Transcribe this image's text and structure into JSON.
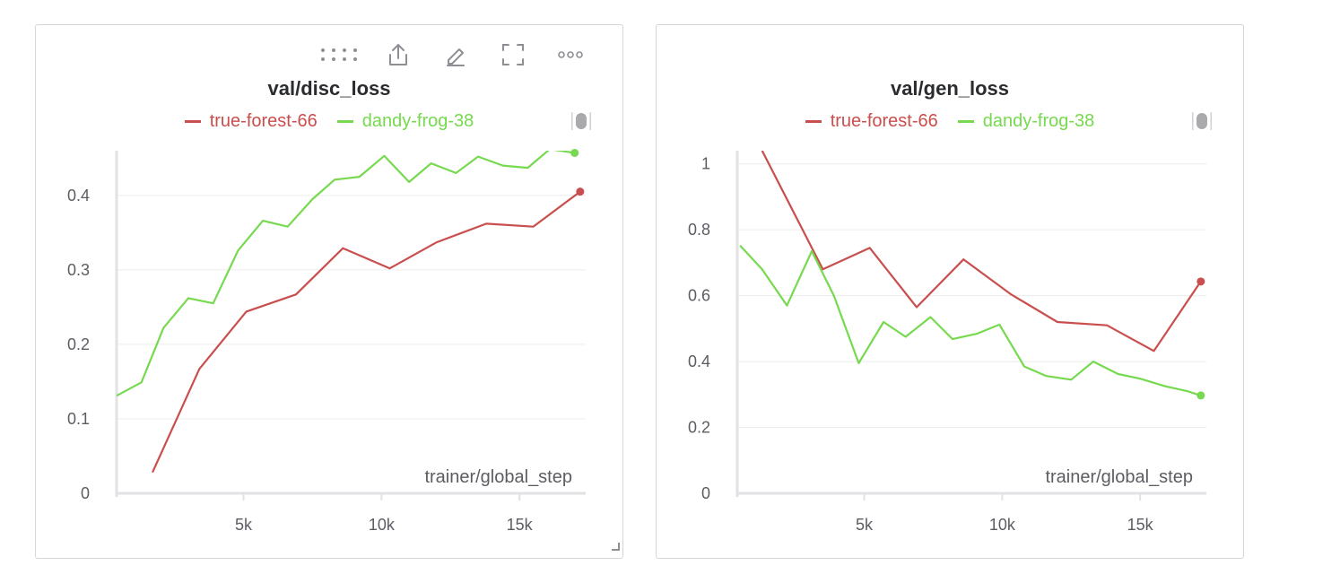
{
  "panels": [
    {
      "toolbar": {
        "icons": [
          "drag-handle-icon",
          "share-icon",
          "edit-icon",
          "fullscreen-icon",
          "more-options-icon"
        ]
      },
      "chart_data": {
        "type": "line",
        "title": "val/disc_loss",
        "xlabel": "trainer/global_step",
        "ylabel": "",
        "xlim": [
          400,
          17400
        ],
        "ylim": [
          0,
          0.46
        ],
        "xticks": [
          5000,
          10000,
          15000
        ],
        "xtick_labels": [
          "5k",
          "10k",
          "15k"
        ],
        "yticks": [
          0,
          0.1,
          0.2,
          0.3,
          0.4
        ],
        "ytick_labels": [
          "0",
          "0.1",
          "0.2",
          "0.3",
          "0.4"
        ],
        "grid": true,
        "legend_position": "top-center",
        "series": [
          {
            "name": "true-forest-66",
            "color": "#c94e4e",
            "x": [
              1700,
              3400,
              5100,
              6900,
              8600,
              10300,
              12000,
              13800,
              15500,
              17200
            ],
            "y": [
              0.028,
              0.167,
              0.244,
              0.267,
              0.329,
              0.302,
              0.337,
              0.362,
              0.358,
              0.405
            ]
          },
          {
            "name": "dandy-frog-38",
            "color": "#77d94f",
            "x": [
              400,
              1300,
              2100,
              3000,
              3900,
              4800,
              5700,
              6600,
              7500,
              8300,
              9200,
              10100,
              11000,
              11800,
              12700,
              13500,
              14400,
              15300,
              16100,
              17000
            ],
            "y": [
              0.131,
              0.149,
              0.222,
              0.262,
              0.255,
              0.326,
              0.366,
              0.358,
              0.395,
              0.421,
              0.425,
              0.453,
              0.418,
              0.443,
              0.43,
              0.452,
              0.44,
              0.437,
              0.462,
              0.457
            ]
          }
        ]
      }
    },
    {
      "toolbar": {
        "icons": []
      },
      "chart_data": {
        "type": "line",
        "title": "val/gen_loss",
        "xlabel": "trainer/global_step",
        "ylabel": "",
        "xlim": [
          400,
          17400
        ],
        "ylim": [
          0,
          1.04
        ],
        "xticks": [
          5000,
          10000,
          15000
        ],
        "xtick_labels": [
          "5k",
          "10k",
          "15k"
        ],
        "yticks": [
          0,
          0.2,
          0.4,
          0.6,
          0.8,
          1
        ],
        "ytick_labels": [
          "0",
          "0.2",
          "0.4",
          "0.6",
          "0.8",
          "1"
        ],
        "grid": true,
        "legend_position": "top-center",
        "series": [
          {
            "name": "true-forest-66",
            "color": "#c94e4e",
            "x": [
              1300,
              3500,
              5200,
              6900,
              8600,
              10300,
              12000,
              13800,
              15500,
              17200
            ],
            "y": [
              1.04,
              0.68,
              0.745,
              0.565,
              0.71,
              0.605,
              0.52,
              0.51,
              0.432,
              0.643
            ]
          },
          {
            "name": "dandy-frog-38",
            "color": "#77d94f",
            "x": [
              500,
              1300,
              2200,
              3100,
              3900,
              4800,
              5700,
              6500,
              7400,
              8200,
              9100,
              9900,
              10800,
              11600,
              12500,
              13300,
              14200,
              15000,
              15900,
              16700,
              17200
            ],
            "y": [
              0.752,
              0.68,
              0.57,
              0.735,
              0.6,
              0.395,
              0.52,
              0.475,
              0.535,
              0.468,
              0.485,
              0.512,
              0.385,
              0.356,
              0.345,
              0.4,
              0.362,
              0.348,
              0.325,
              0.31,
              0.297
            ]
          }
        ]
      }
    }
  ]
}
